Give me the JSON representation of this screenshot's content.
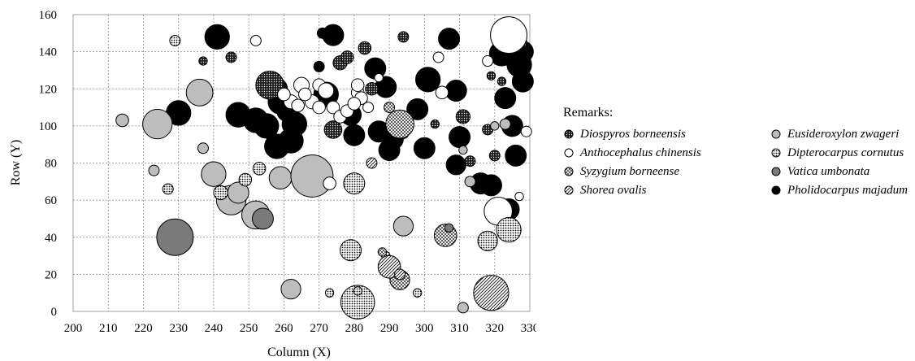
{
  "chart_data": {
    "type": "scatter",
    "subtype": "bubble",
    "xlabel": "Column (X)",
    "ylabel": "Row (Y)",
    "xlim": [
      200,
      330
    ],
    "ylim": [
      0,
      160
    ],
    "xticks": [
      "200",
      "210",
      "220",
      "230",
      "240",
      "250",
      "260",
      "270",
      "280",
      "290",
      "300",
      "310",
      "320",
      "330"
    ],
    "yticks": [
      "0",
      "20",
      "40",
      "60",
      "80",
      "100",
      "120",
      "140",
      "160"
    ],
    "grid": true,
    "legend_title": "Remarks:",
    "legend_position": "right",
    "species": [
      {
        "name": "Diospyros borneensis",
        "style": "dotted-dark"
      },
      {
        "name": "Eusideroxylon zwageri",
        "style": "gray"
      },
      {
        "name": "Anthocephalus chinensis",
        "style": "white"
      },
      {
        "name": "Dipterocarpus cornutus",
        "style": "dotted-light"
      },
      {
        "name": "Syzygium borneense",
        "style": "crosshatch"
      },
      {
        "name": "Vatica umbonata",
        "style": "dark-gray"
      },
      {
        "name": "Shorea ovalis",
        "style": "hatched"
      },
      {
        "name": "Pholidocarpus majadum",
        "style": "black"
      }
    ],
    "points": [
      {
        "x": 241,
        "y": 148,
        "r": 3.5,
        "s": 7
      },
      {
        "x": 230,
        "y": 107,
        "r": 3.5,
        "s": 7
      },
      {
        "x": 247,
        "y": 106,
        "r": 3.5,
        "s": 7
      },
      {
        "x": 252,
        "y": 103,
        "r": 3.5,
        "s": 7
      },
      {
        "x": 255,
        "y": 100,
        "r": 3.5,
        "s": 7
      },
      {
        "x": 258,
        "y": 89,
        "r": 3.5,
        "s": 7
      },
      {
        "x": 262,
        "y": 92,
        "r": 3.5,
        "s": 7
      },
      {
        "x": 263,
        "y": 101,
        "r": 3.5,
        "s": 7
      },
      {
        "x": 261,
        "y": 108,
        "r": 3,
        "s": 7
      },
      {
        "x": 259,
        "y": 113,
        "r": 3.5,
        "s": 7
      },
      {
        "x": 258,
        "y": 120,
        "r": 3,
        "s": 7
      },
      {
        "x": 274,
        "y": 149,
        "r": 3,
        "s": 7
      },
      {
        "x": 279,
        "y": 106,
        "r": 3,
        "s": 7
      },
      {
        "x": 280,
        "y": 95,
        "r": 3,
        "s": 7
      },
      {
        "x": 286,
        "y": 131,
        "r": 3,
        "s": 7
      },
      {
        "x": 289,
        "y": 121,
        "r": 3,
        "s": 7
      },
      {
        "x": 287,
        "y": 97,
        "r": 3,
        "s": 7
      },
      {
        "x": 291,
        "y": 93,
        "r": 3,
        "s": 7
      },
      {
        "x": 290,
        "y": 87,
        "r": 3,
        "s": 7
      },
      {
        "x": 298,
        "y": 109,
        "r": 3,
        "s": 7
      },
      {
        "x": 300,
        "y": 88,
        "r": 3,
        "s": 7
      },
      {
        "x": 301,
        "y": 125,
        "r": 3.5,
        "s": 7
      },
      {
        "x": 307,
        "y": 147,
        "r": 3,
        "s": 7
      },
      {
        "x": 309,
        "y": 119,
        "r": 3,
        "s": 7
      },
      {
        "x": 310,
        "y": 94,
        "r": 3,
        "s": 7
      },
      {
        "x": 309,
        "y": 79,
        "r": 2.8,
        "s": 7
      },
      {
        "x": 316,
        "y": 69,
        "r": 3,
        "s": 7
      },
      {
        "x": 319,
        "y": 68,
        "r": 3,
        "s": 7
      },
      {
        "x": 322,
        "y": 139,
        "r": 3.5,
        "s": 7
      },
      {
        "x": 323,
        "y": 115,
        "r": 3,
        "s": 7
      },
      {
        "x": 325,
        "y": 100,
        "r": 3,
        "s": 7
      },
      {
        "x": 326,
        "y": 84,
        "r": 3,
        "s": 7
      },
      {
        "x": 327,
        "y": 133,
        "r": 3.5,
        "s": 7
      },
      {
        "x": 328,
        "y": 140,
        "r": 3,
        "s": 7
      },
      {
        "x": 328,
        "y": 124,
        "r": 3,
        "s": 7
      },
      {
        "x": 324,
        "y": 55,
        "r": 3,
        "s": 7
      },
      {
        "x": 272,
        "y": 117,
        "r": 3.5,
        "s": 7
      },
      {
        "x": 270,
        "y": 132,
        "r": 1.5,
        "s": 7
      },
      {
        "x": 271,
        "y": 150,
        "r": 1.5,
        "s": 7
      },
      {
        "x": 256,
        "y": 122,
        "r": 4,
        "s": 0
      },
      {
        "x": 274,
        "y": 98,
        "r": 2.5,
        "s": 0
      },
      {
        "x": 283,
        "y": 142,
        "r": 1.8,
        "s": 0
      },
      {
        "x": 285,
        "y": 120,
        "r": 1.8,
        "s": 0
      },
      {
        "x": 294,
        "y": 148,
        "r": 1.5,
        "s": 0
      },
      {
        "x": 276,
        "y": 134,
        "r": 2,
        "s": 0
      },
      {
        "x": 311,
        "y": 105,
        "r": 2,
        "s": 0
      },
      {
        "x": 313,
        "y": 81,
        "r": 1.5,
        "s": 0
      },
      {
        "x": 245,
        "y": 137,
        "r": 1.5,
        "s": 0
      },
      {
        "x": 237,
        "y": 135,
        "r": 1.2,
        "s": 0
      },
      {
        "x": 278,
        "y": 137,
        "r": 1.8,
        "s": 0
      },
      {
        "x": 303,
        "y": 101,
        "r": 1.2,
        "s": 0
      },
      {
        "x": 294,
        "y": 96,
        "r": 1.5,
        "s": 0
      },
      {
        "x": 318,
        "y": 98,
        "r": 1.5,
        "s": 0
      },
      {
        "x": 320,
        "y": 84,
        "r": 1.5,
        "s": 0
      },
      {
        "x": 328,
        "y": 145,
        "r": 1.2,
        "s": 0
      },
      {
        "x": 319,
        "y": 127,
        "r": 1.2,
        "s": 0
      },
      {
        "x": 322,
        "y": 124,
        "r": 1.2,
        "s": 0
      },
      {
        "x": 224,
        "y": 101,
        "r": 4.2,
        "s": 1
      },
      {
        "x": 236,
        "y": 118,
        "r": 3.8,
        "s": 1
      },
      {
        "x": 240,
        "y": 74,
        "r": 3.5,
        "s": 1
      },
      {
        "x": 245,
        "y": 60,
        "r": 4.2,
        "s": 1
      },
      {
        "x": 247,
        "y": 64,
        "r": 3.0,
        "s": 1
      },
      {
        "x": 252,
        "y": 52,
        "r": 4.0,
        "s": 1
      },
      {
        "x": 259,
        "y": 72,
        "r": 3.2,
        "s": 1
      },
      {
        "x": 268,
        "y": 73,
        "r": 6.0,
        "s": 1
      },
      {
        "x": 262,
        "y": 12,
        "r": 2.8,
        "s": 1
      },
      {
        "x": 294,
        "y": 46,
        "r": 2.8,
        "s": 1
      },
      {
        "x": 214,
        "y": 103,
        "r": 1.8,
        "s": 1
      },
      {
        "x": 223,
        "y": 76,
        "r": 1.5,
        "s": 1
      },
      {
        "x": 237,
        "y": 88,
        "r": 1.5,
        "s": 1
      },
      {
        "x": 311,
        "y": 2,
        "r": 1.5,
        "s": 1
      },
      {
        "x": 311,
        "y": 87,
        "r": 1.2,
        "s": 1
      },
      {
        "x": 313,
        "y": 70,
        "r": 1.5,
        "s": 1
      },
      {
        "x": 320,
        "y": 100,
        "r": 1.2,
        "s": 1
      },
      {
        "x": 323,
        "y": 101,
        "r": 1.5,
        "s": 1
      },
      {
        "x": 324,
        "y": 149,
        "r": 5.2,
        "s": 2
      },
      {
        "x": 321,
        "y": 54,
        "r": 4.0,
        "s": 2
      },
      {
        "x": 252,
        "y": 146,
        "r": 1.5,
        "s": 2
      },
      {
        "x": 265,
        "y": 122,
        "r": 2.2,
        "s": 2
      },
      {
        "x": 268,
        "y": 113,
        "r": 2.0,
        "s": 2
      },
      {
        "x": 262,
        "y": 113,
        "r": 2.0,
        "s": 2
      },
      {
        "x": 264,
        "y": 111,
        "r": 1.8,
        "s": 2
      },
      {
        "x": 270,
        "y": 122,
        "r": 1.8,
        "s": 2
      },
      {
        "x": 272,
        "y": 119,
        "r": 2.2,
        "s": 2
      },
      {
        "x": 274,
        "y": 110,
        "r": 1.8,
        "s": 2
      },
      {
        "x": 276,
        "y": 105,
        "r": 1.8,
        "s": 2
      },
      {
        "x": 278,
        "y": 108,
        "r": 1.8,
        "s": 2
      },
      {
        "x": 270,
        "y": 110,
        "r": 1.8,
        "s": 2
      },
      {
        "x": 260,
        "y": 117,
        "r": 1.8,
        "s": 2
      },
      {
        "x": 266,
        "y": 117,
        "r": 1.8,
        "s": 2
      },
      {
        "x": 281,
        "y": 118,
        "r": 1.8,
        "s": 2
      },
      {
        "x": 282,
        "y": 115,
        "r": 1.8,
        "s": 2
      },
      {
        "x": 280,
        "y": 112,
        "r": 1.8,
        "s": 2
      },
      {
        "x": 273,
        "y": 69,
        "r": 1.8,
        "s": 2
      },
      {
        "x": 284,
        "y": 110,
        "r": 1.5,
        "s": 2
      },
      {
        "x": 287,
        "y": 126,
        "r": 1.2,
        "s": 2
      },
      {
        "x": 305,
        "y": 118,
        "r": 1.8,
        "s": 2
      },
      {
        "x": 304,
        "y": 137,
        "r": 1.5,
        "s": 2
      },
      {
        "x": 318,
        "y": 135,
        "r": 1.5,
        "s": 2
      },
      {
        "x": 329,
        "y": 97,
        "r": 1.5,
        "s": 2
      },
      {
        "x": 327,
        "y": 62,
        "r": 1.2,
        "s": 2
      },
      {
        "x": 281,
        "y": 122,
        "r": 1.8,
        "s": 2
      },
      {
        "x": 229,
        "y": 146,
        "r": 1.5,
        "s": 3
      },
      {
        "x": 227,
        "y": 66,
        "r": 1.5,
        "s": 3
      },
      {
        "x": 242,
        "y": 64,
        "r": 2.0,
        "s": 3
      },
      {
        "x": 249,
        "y": 71,
        "r": 1.8,
        "s": 3
      },
      {
        "x": 253,
        "y": 77,
        "r": 1.8,
        "s": 3
      },
      {
        "x": 280,
        "y": 69,
        "r": 3.0,
        "s": 3
      },
      {
        "x": 279,
        "y": 33,
        "r": 3.0,
        "s": 3
      },
      {
        "x": 281,
        "y": 5,
        "r": 4.8,
        "s": 3
      },
      {
        "x": 318,
        "y": 38,
        "r": 2.8,
        "s": 3
      },
      {
        "x": 324,
        "y": 44,
        "r": 3.5,
        "s": 3
      },
      {
        "x": 273,
        "y": 10,
        "r": 1.2,
        "s": 3
      },
      {
        "x": 298,
        "y": 10,
        "r": 1.2,
        "s": 3
      },
      {
        "x": 289,
        "y": 30,
        "r": 1.2,
        "s": 3
      },
      {
        "x": 281,
        "y": 11,
        "r": 1.2,
        "s": 3
      },
      {
        "x": 293,
        "y": 101,
        "r": 4.0,
        "s": 4
      },
      {
        "x": 306,
        "y": 41,
        "r": 3.2,
        "s": 4
      },
      {
        "x": 293,
        "y": 17,
        "r": 2.8,
        "s": 4
      },
      {
        "x": 290,
        "y": 110,
        "r": 1.5,
        "s": 4
      },
      {
        "x": 288,
        "y": 32,
        "r": 1.2,
        "s": 4
      },
      {
        "x": 229,
        "y": 40,
        "r": 5.2,
        "s": 5
      },
      {
        "x": 254,
        "y": 50,
        "r": 3.0,
        "s": 5
      },
      {
        "x": 307,
        "y": 45,
        "r": 1.2,
        "s": 5
      },
      {
        "x": 290,
        "y": 24,
        "r": 3.2,
        "s": 6
      },
      {
        "x": 319,
        "y": 10,
        "r": 5.0,
        "s": 6
      },
      {
        "x": 285,
        "y": 80,
        "r": 1.5,
        "s": 6
      },
      {
        "x": 293,
        "y": 20,
        "r": 1.5,
        "s": 6
      }
    ]
  }
}
